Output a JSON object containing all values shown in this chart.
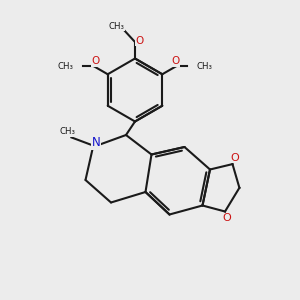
{
  "bg_color": "#ececec",
  "bond_color": "#1a1a1a",
  "n_color": "#1414cc",
  "o_color": "#cc1414",
  "lw": 1.5,
  "figsize": [
    3.0,
    3.0
  ],
  "dpi": 100,
  "xlim": [
    0,
    10
  ],
  "ylim": [
    0,
    10
  ]
}
